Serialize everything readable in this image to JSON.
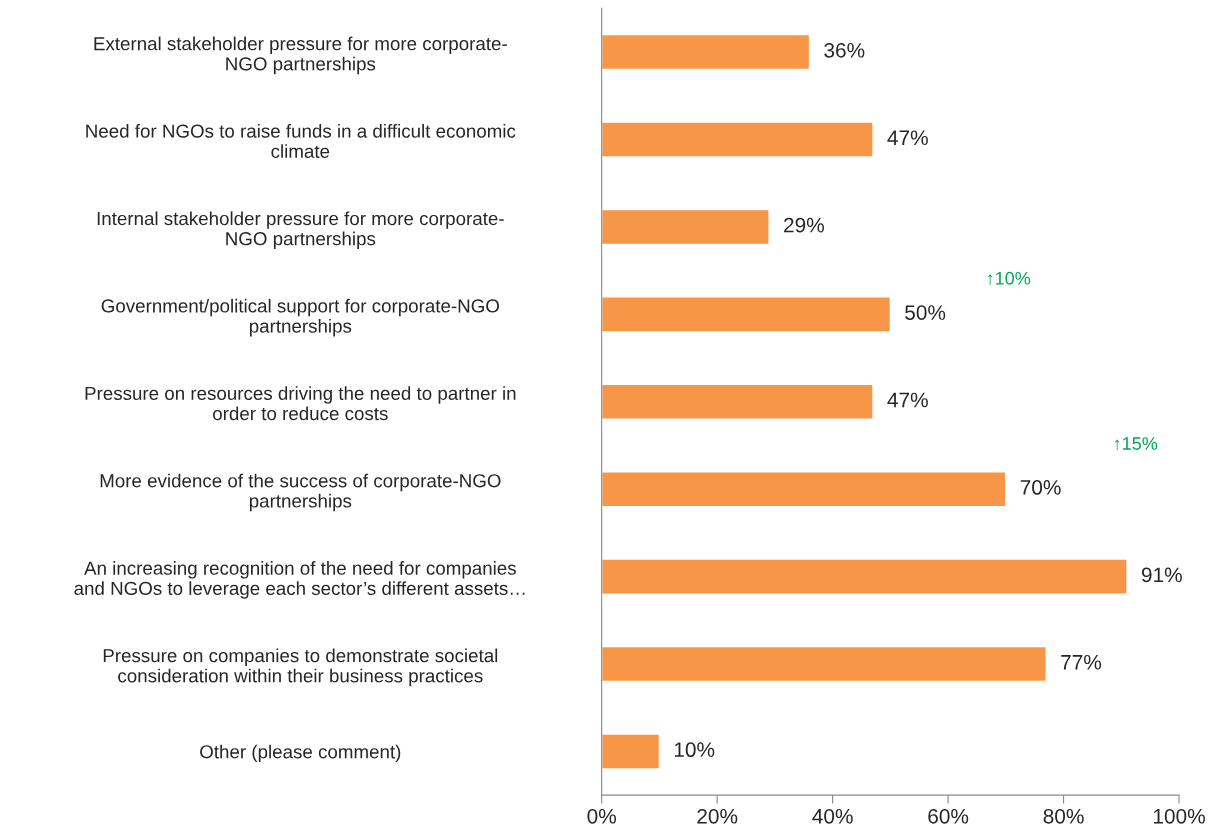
{
  "chart_data": {
    "type": "bar",
    "orientation": "horizontal",
    "categories": [
      "External stakeholder pressure for more corporate-\nNGO partnerships",
      "Need for NGOs to raise funds in a difficult economic\nclimate",
      "Internal stakeholder pressure for more corporate-\nNGO partnerships",
      "Government/political support for corporate-NGO\npartnerships",
      "Pressure on resources driving the need to partner in\norder to reduce costs",
      "More evidence of the success of corporate-NGO\npartnerships",
      "An increasing recognition of the need for companies\nand NGOs to leverage each sector’s different assets…",
      "Pressure on companies to demonstrate societal\nconsideration within their business practices",
      "Other (please comment)"
    ],
    "values": [
      36,
      47,
      29,
      50,
      47,
      70,
      91,
      77,
      10
    ],
    "value_labels": [
      "36%",
      "47%",
      "29%",
      "50%",
      "47%",
      "70%",
      "91%",
      "77%",
      "10%"
    ],
    "color": "#f79646",
    "xlim": [
      0,
      100
    ],
    "xticks": [
      {
        "value": 0,
        "label": "0%"
      },
      {
        "value": 20,
        "label": "20%"
      },
      {
        "value": 40,
        "label": "40%"
      },
      {
        "value": 60,
        "label": "60%"
      },
      {
        "value": 80,
        "label": "80%"
      },
      {
        "value": 100,
        "label": "100%"
      }
    ],
    "annotations": [
      "↑10%",
      "↑15%"
    ],
    "grid": false,
    "legend": false
  }
}
